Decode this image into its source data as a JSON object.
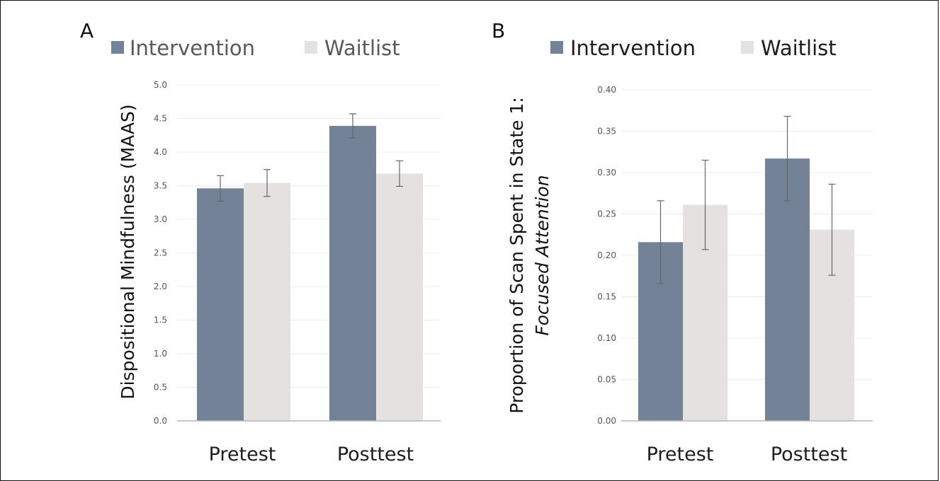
{
  "chart_data": [
    {
      "panel": "A",
      "type": "bar",
      "categories": [
        "Pretest",
        "Posttest"
      ],
      "series": [
        {
          "name": "Intervention",
          "values": [
            3.46,
            4.39
          ],
          "err": [
            0.19,
            0.18
          ],
          "color": "#738297"
        },
        {
          "name": "Waitlist",
          "values": [
            3.54,
            3.68
          ],
          "err": [
            0.2,
            0.19
          ],
          "color": "#e5e1e1"
        }
      ],
      "ylabel": "Dispositional Mindfulness (MAAS)",
      "ylim": [
        0,
        5
      ],
      "yticks": [
        "0.0",
        "0.5",
        "1.0",
        "1.5",
        "2.0",
        "2.5",
        "3.0",
        "3.5",
        "4.0",
        "4.5",
        "5.0"
      ],
      "grid": true,
      "legend": "top"
    },
    {
      "panel": "B",
      "type": "bar",
      "categories": [
        "Pretest",
        "Posttest"
      ],
      "series": [
        {
          "name": "Intervention",
          "values": [
            0.216,
            0.317
          ],
          "err": [
            0.05,
            0.051
          ],
          "color": "#738297"
        },
        {
          "name": "Waitlist",
          "values": [
            0.261,
            0.231
          ],
          "err": [
            0.054,
            0.055
          ],
          "color": "#e5e1e1"
        }
      ],
      "ylabel_line1": "Proportion of Scan Spent in State 1:",
      "ylabel_line2": "Focused Attention",
      "ylim": [
        0,
        0.4
      ],
      "yticks": [
        "0.00",
        "0.05",
        "0.10",
        "0.15",
        "0.20",
        "0.25",
        "0.30",
        "0.35",
        "0.40"
      ],
      "grid": true,
      "legend": "top"
    }
  ]
}
